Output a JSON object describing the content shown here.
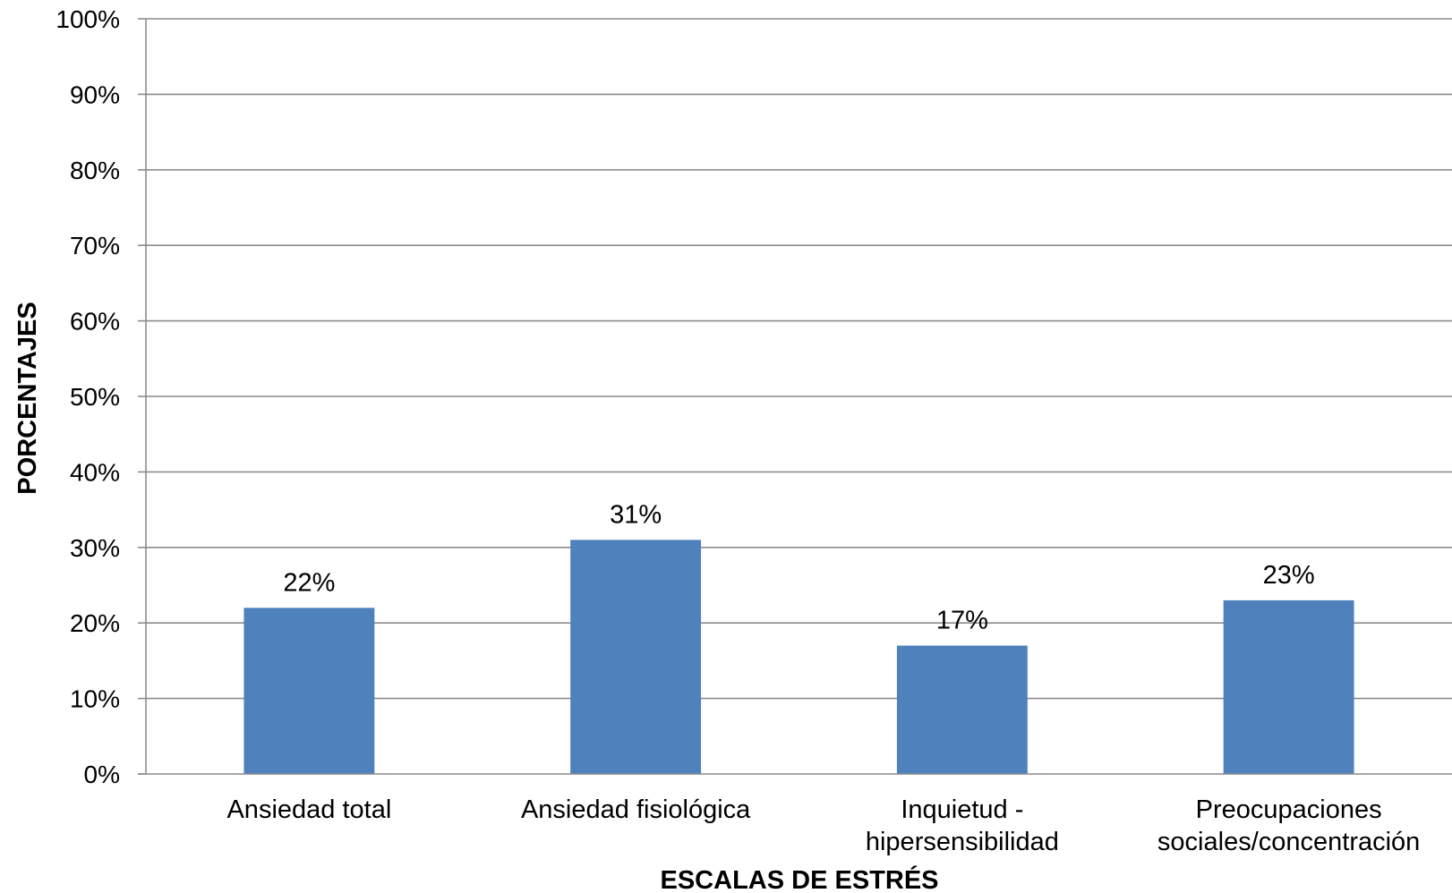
{
  "chart_data": {
    "type": "bar",
    "categories": [
      [
        "Ansiedad total"
      ],
      [
        "Ansiedad fisiológica"
      ],
      [
        "Inquietud -",
        "hipersensibilidad"
      ],
      [
        "Preocupaciones",
        "sociales/concentración"
      ]
    ],
    "values": [
      22,
      31,
      17,
      23
    ],
    "data_labels": [
      "22%",
      "31%",
      "17%",
      "23%"
    ],
    "xlabel": "ESCALAS DE ESTRÉS",
    "ylabel": "PORCENTAJES",
    "ylim": [
      0,
      100
    ],
    "yticks": [
      "0%",
      "10%",
      "20%",
      "30%",
      "40%",
      "50%",
      "60%",
      "70%",
      "80%",
      "90%",
      "100%"
    ],
    "grid": true,
    "legend": "none",
    "colors": {
      "bar": "#4F81BD",
      "grid": "#8C8C8C",
      "axis": "#8C8C8C"
    }
  }
}
